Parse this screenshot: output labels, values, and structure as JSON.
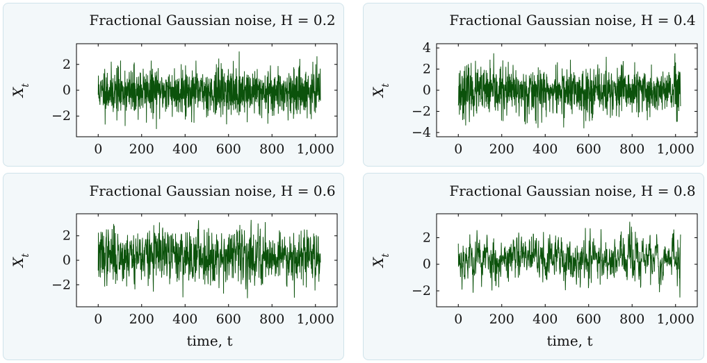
{
  "chart_data": [
    {
      "type": "line",
      "title": "Fractional Gaussian noise, H = 0.2",
      "hurst": 0.2,
      "xlabel": "",
      "ylabel": "X_t",
      "xlim": [
        -100,
        1100
      ],
      "ylim": [
        -3.6,
        3.6
      ],
      "x_ticks": [
        0,
        200,
        400,
        600,
        800,
        1000
      ],
      "x_tick_labels": [
        "0",
        "200",
        "400",
        "600",
        "800",
        "1,000"
      ],
      "y_ticks": [
        -2,
        0,
        2
      ],
      "y_tick_labels": [
        "−2",
        "0",
        "2"
      ],
      "series": [
        {
          "x_range": [
            0,
            1023
          ],
          "approx_range": [
            -3.0,
            3.0
          ],
          "color": "#0b520b"
        }
      ],
      "grid": false
    },
    {
      "type": "line",
      "title": "Fractional Gaussian noise, H = 0.4",
      "hurst": 0.4,
      "xlabel": "",
      "ylabel": "X_t",
      "xlim": [
        -100,
        1100
      ],
      "ylim": [
        -4.4,
        4.4
      ],
      "x_ticks": [
        0,
        200,
        400,
        600,
        800,
        1000
      ],
      "x_tick_labels": [
        "0",
        "200",
        "400",
        "600",
        "800",
        "1,000"
      ],
      "y_ticks": [
        -4,
        -2,
        0,
        2,
        4
      ],
      "y_tick_labels": [
        "−4",
        "−2",
        "0",
        "2",
        "4"
      ],
      "series": [
        {
          "x_range": [
            0,
            1023
          ],
          "approx_range": [
            -3.6,
            3.5
          ],
          "color": "#0b520b"
        }
      ],
      "grid": false
    },
    {
      "type": "line",
      "title": "Fractional Gaussian noise, H = 0.6",
      "hurst": 0.6,
      "xlabel": "time, t",
      "ylabel": "X_t",
      "xlim": [
        -100,
        1100
      ],
      "ylim": [
        -3.8,
        3.8
      ],
      "x_ticks": [
        0,
        200,
        400,
        600,
        800,
        1000
      ],
      "x_tick_labels": [
        "0",
        "200",
        "400",
        "600",
        "800",
        "1,000"
      ],
      "y_ticks": [
        -2,
        0,
        2
      ],
      "y_tick_labels": [
        "−2",
        "0",
        "2"
      ],
      "series": [
        {
          "x_range": [
            0,
            1023
          ],
          "approx_range": [
            -3.1,
            3.3
          ],
          "color": "#0b520b"
        }
      ],
      "grid": false
    },
    {
      "type": "line",
      "title": "Fractional Gaussian noise, H = 0.8",
      "hurst": 0.8,
      "xlabel": "time, t",
      "ylabel": "X_t",
      "xlim": [
        -100,
        1100
      ],
      "ylim": [
        -3.2,
        3.8
      ],
      "x_ticks": [
        0,
        200,
        400,
        600,
        800,
        1000
      ],
      "x_tick_labels": [
        "0",
        "200",
        "400",
        "600",
        "800",
        "1,000"
      ],
      "y_ticks": [
        -2,
        0,
        2
      ],
      "y_tick_labels": [
        "−2",
        "0",
        "2"
      ],
      "series": [
        {
          "x_range": [
            0,
            1023
          ],
          "approx_range": [
            -2.5,
            3.2
          ],
          "color": "#0b520b"
        }
      ],
      "grid": false
    }
  ]
}
